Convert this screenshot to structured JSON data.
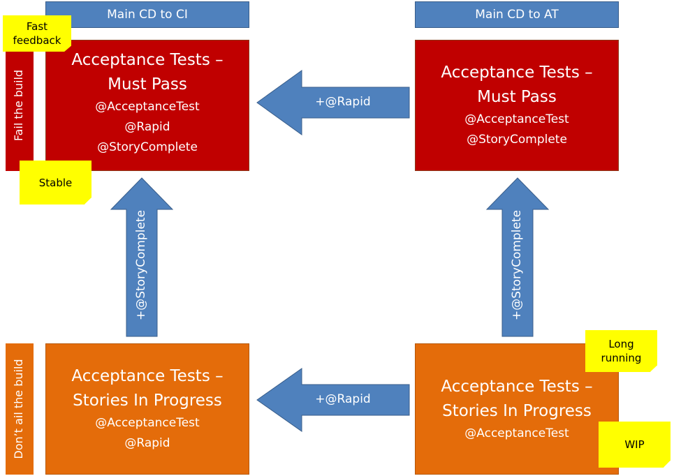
{
  "headers": {
    "left": "Main CD to CI",
    "right": "Main CD to AT"
  },
  "side_labels": {
    "top": "Fail the build",
    "bottom": "Don’t ail the build"
  },
  "boxes": {
    "top_left": {
      "title1": "Acceptance Tests –",
      "title2": "Must Pass",
      "tags": [
        "@AcceptanceTest",
        "@Rapid",
        "@StoryComplete"
      ]
    },
    "top_right": {
      "title1": "Acceptance Tests –",
      "title2": "Must Pass",
      "tags": [
        "@AcceptanceTest",
        "@StoryComplete"
      ]
    },
    "bottom_left": {
      "title1": "Acceptance Tests –",
      "title2": "Stories In Progress",
      "tags": [
        "@AcceptanceTest",
        "@Rapid"
      ]
    },
    "bottom_right": {
      "title1": "Acceptance Tests –",
      "title2": "Stories In Progress",
      "tags": [
        "@AcceptanceTest"
      ]
    }
  },
  "arrows": {
    "top_horizontal": "+@Rapid",
    "bottom_horizontal": "+@Rapid",
    "left_vertical": "+@StoryComplete",
    "right_vertical": "+@StoryComplete"
  },
  "notes": {
    "fast_feedback": "Fast feedback",
    "stable": "Stable",
    "long_running": "Long running",
    "wip": "WIP"
  },
  "colors": {
    "header_blue": "#4f81bd",
    "must_pass_red": "#c00000",
    "in_progress_orange": "#e46c0a",
    "sticky_yellow": "#ffff00"
  }
}
